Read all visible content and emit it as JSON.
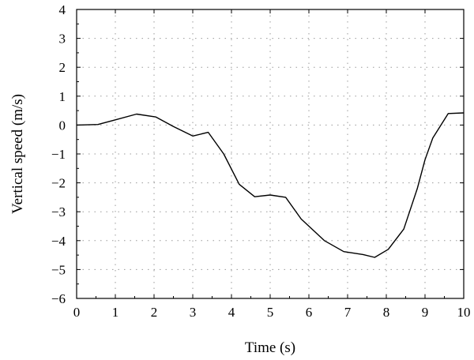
{
  "chart_data": {
    "type": "line",
    "title": "",
    "xlabel": "Time (s)",
    "ylabel": "Vertical speed (m/s)",
    "xlim": [
      0,
      10
    ],
    "ylim": [
      -6,
      4
    ],
    "x_ticks": [
      0,
      1,
      2,
      3,
      4,
      5,
      6,
      7,
      8,
      9,
      10
    ],
    "y_ticks": [
      4,
      3,
      2,
      1,
      0,
      -1,
      -2,
      -3,
      -4,
      -5,
      -6
    ],
    "x_tick_labels": [
      "0",
      "1",
      "2",
      "3",
      "4",
      "5",
      "6",
      "7",
      "8",
      "9",
      "10"
    ],
    "y_tick_labels": [
      "4",
      "3",
      "2",
      "1",
      "0",
      "−1",
      "−2",
      "−3",
      "−4",
      "−5",
      "−6"
    ],
    "grid": true,
    "legend": "none",
    "series": [
      {
        "color": "#000000",
        "x": [
          0,
          0.55,
          1.0,
          1.55,
          2.05,
          2.5,
          3.0,
          3.4,
          3.8,
          4.2,
          4.6,
          5.0,
          5.4,
          5.8,
          6.4,
          6.9,
          7.4,
          7.7,
          8.05,
          8.45,
          8.8,
          9.0,
          9.2,
          9.6,
          10.0
        ],
        "y": [
          0.0,
          0.02,
          0.18,
          0.38,
          0.28,
          -0.05,
          -0.38,
          -0.25,
          -1.0,
          -2.05,
          -2.48,
          -2.42,
          -2.5,
          -3.25,
          -4.0,
          -4.38,
          -4.48,
          -4.58,
          -4.3,
          -3.6,
          -2.2,
          -1.2,
          -0.45,
          0.4,
          0.42
        ]
      }
    ]
  }
}
